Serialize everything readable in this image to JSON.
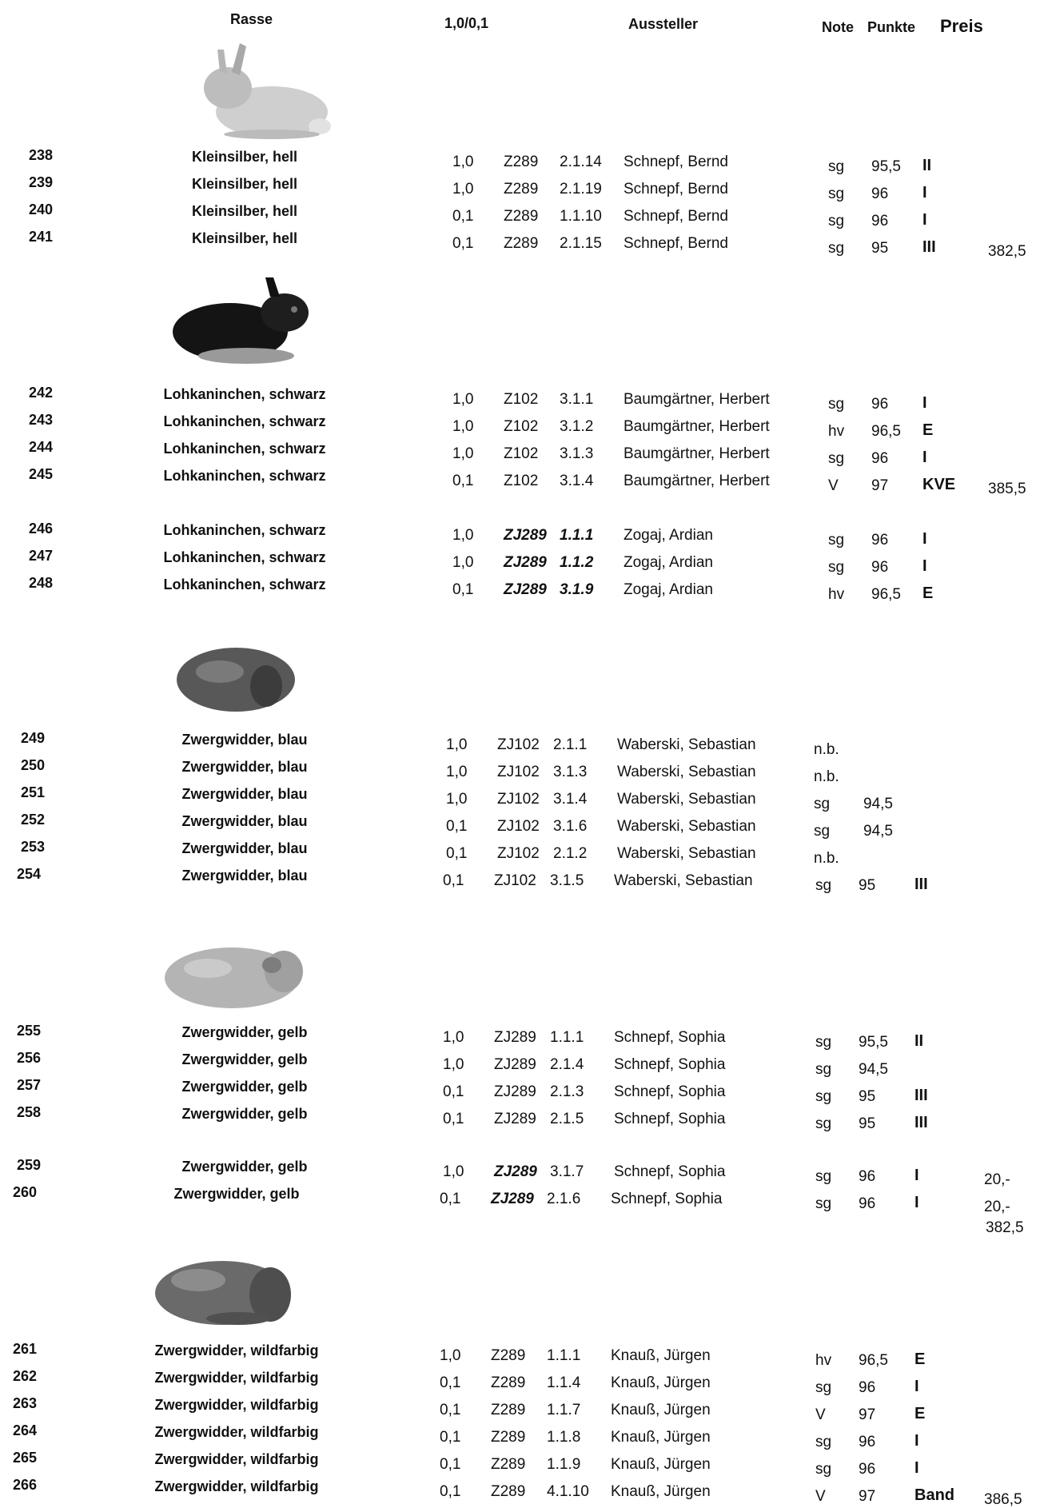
{
  "header": {
    "rasse": "Rasse",
    "sex": "1,0/0,1",
    "aussteller": "Aussteller",
    "note": "Note",
    "punkte": "Punkte",
    "preis": "Preis"
  },
  "images": [
    {
      "icon": "rabbit-kleinsilber-icon",
      "color": "#c8c8c8"
    },
    {
      "icon": "rabbit-lohkaninchen-icon",
      "color": "#1a1a1a"
    },
    {
      "icon": "rabbit-zwergwidder-blau-icon",
      "color": "#555555"
    },
    {
      "icon": "rabbit-zwergwidder-gelb-icon",
      "color": "#b0b0b0"
    },
    {
      "icon": "rabbit-zwergwidder-wildfarbig-icon",
      "color": "#6a6a6a"
    }
  ],
  "rows": [
    {
      "nr": "238",
      "rasse": "Kleinsilber, hell",
      "sex": "1,0",
      "tat": "Z289",
      "nummer": "2.1.14",
      "aussteller": "Schnepf, Bernd",
      "note": "sg",
      "punkte": "95,5",
      "preis": "II",
      "summe": ""
    },
    {
      "nr": "239",
      "rasse": "Kleinsilber, hell",
      "sex": "1,0",
      "tat": "Z289",
      "nummer": "2.1.19",
      "aussteller": "Schnepf, Bernd",
      "note": "sg",
      "punkte": "96",
      "preis": "I",
      "summe": ""
    },
    {
      "nr": "240",
      "rasse": "Kleinsilber, hell",
      "sex": "0,1",
      "tat": "Z289",
      "nummer": "1.1.10",
      "aussteller": "Schnepf, Bernd",
      "note": "sg",
      "punkte": "96",
      "preis": "I",
      "summe": ""
    },
    {
      "nr": "241",
      "rasse": "Kleinsilber, hell",
      "sex": "0,1",
      "tat": "Z289",
      "nummer": "2.1.15",
      "aussteller": "Schnepf, Bernd",
      "note": "sg",
      "punkte": "95",
      "preis": "III",
      "summe": "382,5"
    },
    {
      "nr": "242",
      "rasse": "Lohkaninchen, schwarz",
      "sex": "1,0",
      "tat": "Z102",
      "nummer": "3.1.1",
      "aussteller": "Baumgärtner, Herbert",
      "note": "sg",
      "punkte": "96",
      "preis": "I",
      "summe": ""
    },
    {
      "nr": "243",
      "rasse": "Lohkaninchen, schwarz",
      "sex": "1,0",
      "tat": "Z102",
      "nummer": "3.1.2",
      "aussteller": "Baumgärtner, Herbert",
      "note": "hv",
      "punkte": "96,5",
      "preis": "E",
      "summe": ""
    },
    {
      "nr": "244",
      "rasse": "Lohkaninchen, schwarz",
      "sex": "1,0",
      "tat": "Z102",
      "nummer": "3.1.3",
      "aussteller": "Baumgärtner, Herbert",
      "note": "sg",
      "punkte": "96",
      "preis": "I",
      "summe": ""
    },
    {
      "nr": "245",
      "rasse": "Lohkaninchen, schwarz",
      "sex": "0,1",
      "tat": "Z102",
      "nummer": "3.1.4",
      "aussteller": "Baumgärtner, Herbert",
      "note": "V",
      "punkte": "97",
      "preis": "KVE",
      "summe": "385,5"
    },
    {
      "nr": "246",
      "rasse": "Lohkaninchen, schwarz",
      "sex": "1,0",
      "tat": "ZJ289",
      "nummer": "1.1.1",
      "aussteller": "Zogaj, Ardian",
      "note": "sg",
      "punkte": "96",
      "preis": "I",
      "summe": "",
      "emph": true
    },
    {
      "nr": "247",
      "rasse": "Lohkaninchen, schwarz",
      "sex": "1,0",
      "tat": "ZJ289",
      "nummer": "1.1.2",
      "aussteller": "Zogaj, Ardian",
      "note": "sg",
      "punkte": "96",
      "preis": "I",
      "summe": "",
      "emph": true
    },
    {
      "nr": "248",
      "rasse": "Lohkaninchen, schwarz",
      "sex": "0,1",
      "tat": "ZJ289",
      "nummer": "3.1.9",
      "aussteller": "Zogaj, Ardian",
      "note": "hv",
      "punkte": "96,5",
      "preis": "E",
      "summe": "",
      "emph": true
    },
    {
      "nr": "249",
      "rasse": "Zwergwidder, blau",
      "sex": "1,0",
      "tat": "ZJ102",
      "nummer": "2.1.1",
      "aussteller": "Waberski, Sebastian",
      "note": "n.b.",
      "punkte": "",
      "preis": "",
      "summe": ""
    },
    {
      "nr": "250",
      "rasse": "Zwergwidder, blau",
      "sex": "1,0",
      "tat": "ZJ102",
      "nummer": "3.1.3",
      "aussteller": "Waberski, Sebastian",
      "note": "n.b.",
      "punkte": "",
      "preis": "",
      "summe": ""
    },
    {
      "nr": "251",
      "rasse": "Zwergwidder, blau",
      "sex": "1,0",
      "tat": "ZJ102",
      "nummer": "3.1.4",
      "aussteller": "Waberski, Sebastian",
      "note": "sg",
      "punkte": "94,5",
      "preis": "",
      "summe": ""
    },
    {
      "nr": "252",
      "rasse": "Zwergwidder, blau",
      "sex": "0,1",
      "tat": "ZJ102",
      "nummer": "3.1.6",
      "aussteller": "Waberski, Sebastian",
      "note": "sg",
      "punkte": "94,5",
      "preis": "",
      "summe": ""
    },
    {
      "nr": "253",
      "rasse": "Zwergwidder, blau",
      "sex": "0,1",
      "tat": "ZJ102",
      "nummer": "2.1.2",
      "aussteller": "Waberski, Sebastian",
      "note": "n.b.",
      "punkte": "",
      "preis": "",
      "summe": ""
    },
    {
      "nr": "254",
      "rasse": "Zwergwidder, blau",
      "sex": "0,1",
      "tat": "ZJ102",
      "nummer": "3.1.5",
      "aussteller": "Waberski, Sebastian",
      "note": "sg",
      "punkte": "95",
      "preis": "III",
      "summe": ""
    },
    {
      "nr": "255",
      "rasse": "Zwergwidder, gelb",
      "sex": "1,0",
      "tat": "ZJ289",
      "nummer": "1.1.1",
      "aussteller": "Schnepf, Sophia",
      "note": "sg",
      "punkte": "95,5",
      "preis": "II",
      "summe": ""
    },
    {
      "nr": "256",
      "rasse": "Zwergwidder, gelb",
      "sex": "1,0",
      "tat": "ZJ289",
      "nummer": "2.1.4",
      "aussteller": "Schnepf, Sophia",
      "note": "sg",
      "punkte": "94,5",
      "preis": "",
      "summe": ""
    },
    {
      "nr": "257",
      "rasse": "Zwergwidder, gelb",
      "sex": "0,1",
      "tat": "ZJ289",
      "nummer": "2.1.3",
      "aussteller": "Schnepf, Sophia",
      "note": "sg",
      "punkte": "95",
      "preis": "III",
      "summe": ""
    },
    {
      "nr": "258",
      "rasse": "Zwergwidder, gelb",
      "sex": "0,1",
      "tat": "ZJ289",
      "nummer": "2.1.5",
      "aussteller": "Schnepf, Sophia",
      "note": "sg",
      "punkte": "95",
      "preis": "III",
      "summe": ""
    },
    {
      "nr": "259",
      "rasse": "Zwergwidder, gelb",
      "sex": "1,0",
      "tat": "ZJ289",
      "nummer": "3.1.7",
      "aussteller": "Schnepf, Sophia",
      "note": "sg",
      "punkte": "96",
      "preis": "I",
      "summe": "20,-",
      "emphTat": true
    },
    {
      "nr": "260",
      "rasse": "Zwergwidder, gelb",
      "sex": "0,1",
      "tat": "ZJ289",
      "nummer": "2.1.6",
      "aussteller": "Schnepf, Sophia",
      "note": "sg",
      "punkte": "96",
      "preis": "I",
      "summe": "20,-",
      "emphTat": true
    },
    {
      "nr": "261",
      "rasse": "Zwergwidder, wildfarbig",
      "sex": "1,0",
      "tat": "Z289",
      "nummer": "1.1.1",
      "aussteller": "Knauß, Jürgen",
      "note": "hv",
      "punkte": "96,5",
      "preis": "E",
      "summe": ""
    },
    {
      "nr": "262",
      "rasse": "Zwergwidder, wildfarbig",
      "sex": "0,1",
      "tat": "Z289",
      "nummer": "1.1.4",
      "aussteller": "Knauß, Jürgen",
      "note": "sg",
      "punkte": "96",
      "preis": "I",
      "summe": ""
    },
    {
      "nr": "263",
      "rasse": "Zwergwidder, wildfarbig",
      "sex": "0,1",
      "tat": "Z289",
      "nummer": "1.1.7",
      "aussteller": "Knauß, Jürgen",
      "note": "V",
      "punkte": "97",
      "preis": "E",
      "summe": ""
    },
    {
      "nr": "264",
      "rasse": "Zwergwidder, wildfarbig",
      "sex": "0,1",
      "tat": "Z289",
      "nummer": "1.1.8",
      "aussteller": "Knauß, Jürgen",
      "note": "sg",
      "punkte": "96",
      "preis": "I",
      "summe": ""
    },
    {
      "nr": "265",
      "rasse": "Zwergwidder, wildfarbig",
      "sex": "0,1",
      "tat": "Z289",
      "nummer": "1.1.9",
      "aussteller": "Knauß, Jürgen",
      "note": "sg",
      "punkte": "96",
      "preis": "I",
      "summe": ""
    },
    {
      "nr": "266",
      "rasse": "Zwergwidder, wildfarbig",
      "sex": "0,1",
      "tat": "Z289",
      "nummer": "4.1.10",
      "aussteller": "Knauß, Jürgen",
      "note": "V",
      "punkte": "97",
      "preis": "Band",
      "summe": "386,5"
    }
  ],
  "extra_totals": [
    {
      "value": "382,5"
    }
  ]
}
